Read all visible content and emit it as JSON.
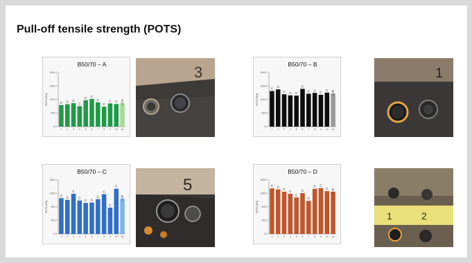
{
  "title": "Pull-off tensile strength (POTS)",
  "chart_data": [
    {
      "type": "bar",
      "title": "B50/70 – A",
      "ylabel": "POTS [kPa]",
      "ylim": [
        0,
        2000
      ],
      "yticks": [
        0,
        500,
        1000,
        1500,
        2000
      ],
      "ytick_labels": [
        "0.0",
        "500.0",
        "1000.0",
        "1500.0",
        "2000.0"
      ],
      "categories": [
        "1",
        "2",
        "3",
        "4",
        "5",
        "6",
        "7",
        "8",
        "9",
        "10",
        "Av"
      ],
      "values": [
        800,
        830,
        870,
        760,
        980,
        1030,
        900,
        740,
        860,
        840,
        880
      ],
      "labels": [
        "C",
        "C",
        "C",
        "C",
        "C",
        "C",
        "C",
        "C",
        "C",
        "C",
        "C"
      ],
      "color": "#1f9a46",
      "avg_color": "#a8d89c"
    },
    {
      "type": "bar",
      "title": "B50/70 – B",
      "ylabel": "POTS [kPa]",
      "ylim": [
        0,
        2000
      ],
      "yticks": [
        0,
        500,
        1000,
        1500,
        2000
      ],
      "ytick_labels": [
        "0.0",
        "500.0",
        "1000.0",
        "1500.0",
        "2000.0"
      ],
      "categories": [
        "1",
        "2",
        "3",
        "4",
        "5",
        "6",
        "7",
        "8",
        "9",
        "10",
        "Av"
      ],
      "values": [
        1320,
        1380,
        1200,
        1160,
        1150,
        1400,
        1220,
        1250,
        1180,
        1260,
        1230
      ],
      "labels": [
        "C",
        "C",
        "C",
        "C",
        "C",
        "C",
        "C",
        "C",
        "C",
        "C",
        "C"
      ],
      "color": "#0d0d0d",
      "avg_color": "#9a9a9a"
    },
    {
      "type": "bar",
      "title": "B50/70 – C",
      "ylabel": "POTS [kPa]",
      "ylim": [
        0,
        1600
      ],
      "yticks": [
        0,
        400,
        800,
        1200,
        1600
      ],
      "ytick_labels": [
        "0.0",
        "400.0",
        "800.0",
        "1200.0",
        "1600.0"
      ],
      "categories": [
        "1",
        "2",
        "3",
        "4",
        "5",
        "6",
        "7",
        "8",
        "9",
        "10",
        "Av"
      ],
      "values": [
        1060,
        1010,
        1190,
        990,
        920,
        930,
        1030,
        1180,
        780,
        1340,
        1050
      ],
      "labels": [
        "C",
        "C",
        "C",
        "C",
        "C",
        "C",
        "C",
        "C",
        "C",
        "C",
        "C"
      ],
      "color": "#2f6fc8",
      "avg_color": "#7fb3e6"
    },
    {
      "type": "bar",
      "title": "B50/70 – D",
      "ylabel": "POTS [kPa]",
      "ylim": [
        0,
        1600
      ],
      "yticks": [
        0,
        400,
        800,
        1200,
        1600
      ],
      "ytick_labels": [
        "0.0",
        "400.0",
        "800.0",
        "1200.0",
        "1600.0"
      ],
      "categories": [
        "1",
        "2",
        "3",
        "4",
        "5",
        "6",
        "7",
        "8",
        "9",
        "10",
        "Av"
      ],
      "values": [
        1350,
        1320,
        1250,
        1190,
        1080,
        1210,
        980,
        1340,
        1360,
        1270,
        1250
      ],
      "labels": [
        "C",
        "C",
        "C",
        "C",
        "C",
        "C",
        "C",
        "C",
        "C",
        "C",
        "C"
      ],
      "color": "#c0562a",
      "avg_color": "#c0562a"
    }
  ],
  "photos": [
    {
      "digit": "3"
    },
    {
      "digit": "1"
    },
    {
      "digit": "5"
    },
    {
      "labels": [
        "1",
        "2"
      ]
    }
  ],
  "colors": {
    "background": "#d9d9d9",
    "slide": "#ffffff",
    "panel": "#f7f7f7"
  }
}
